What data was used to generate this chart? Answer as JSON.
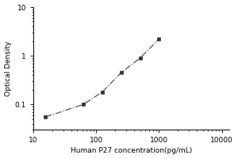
{
  "title": "",
  "xlabel": "Human P27 concentration(pg/mL)",
  "ylabel": "Optical Density",
  "x_data": [
    15.6,
    62.5,
    125,
    250,
    500,
    1000
  ],
  "y_data": [
    0.055,
    0.1,
    0.18,
    0.45,
    0.9,
    2.2
  ],
  "xlim": [
    10,
    13000
  ],
  "ylim": [
    0.03,
    10
  ],
  "xticks": [
    10,
    100,
    1000,
    10000
  ],
  "ytick_vals": [
    0.1,
    1,
    10
  ],
  "ytick_labels": [
    "0.1",
    "1",
    "10"
  ],
  "xtick_labels": [
    "10",
    "100",
    "1000",
    "10000"
  ],
  "line_color": "#555555",
  "marker_color": "#333333",
  "marker_style": "s",
  "marker_size": 3.5,
  "line_style": "-.",
  "line_width": 0.9,
  "background_color": "#ffffff",
  "font_size_label": 6.5,
  "font_size_tick": 6.5
}
